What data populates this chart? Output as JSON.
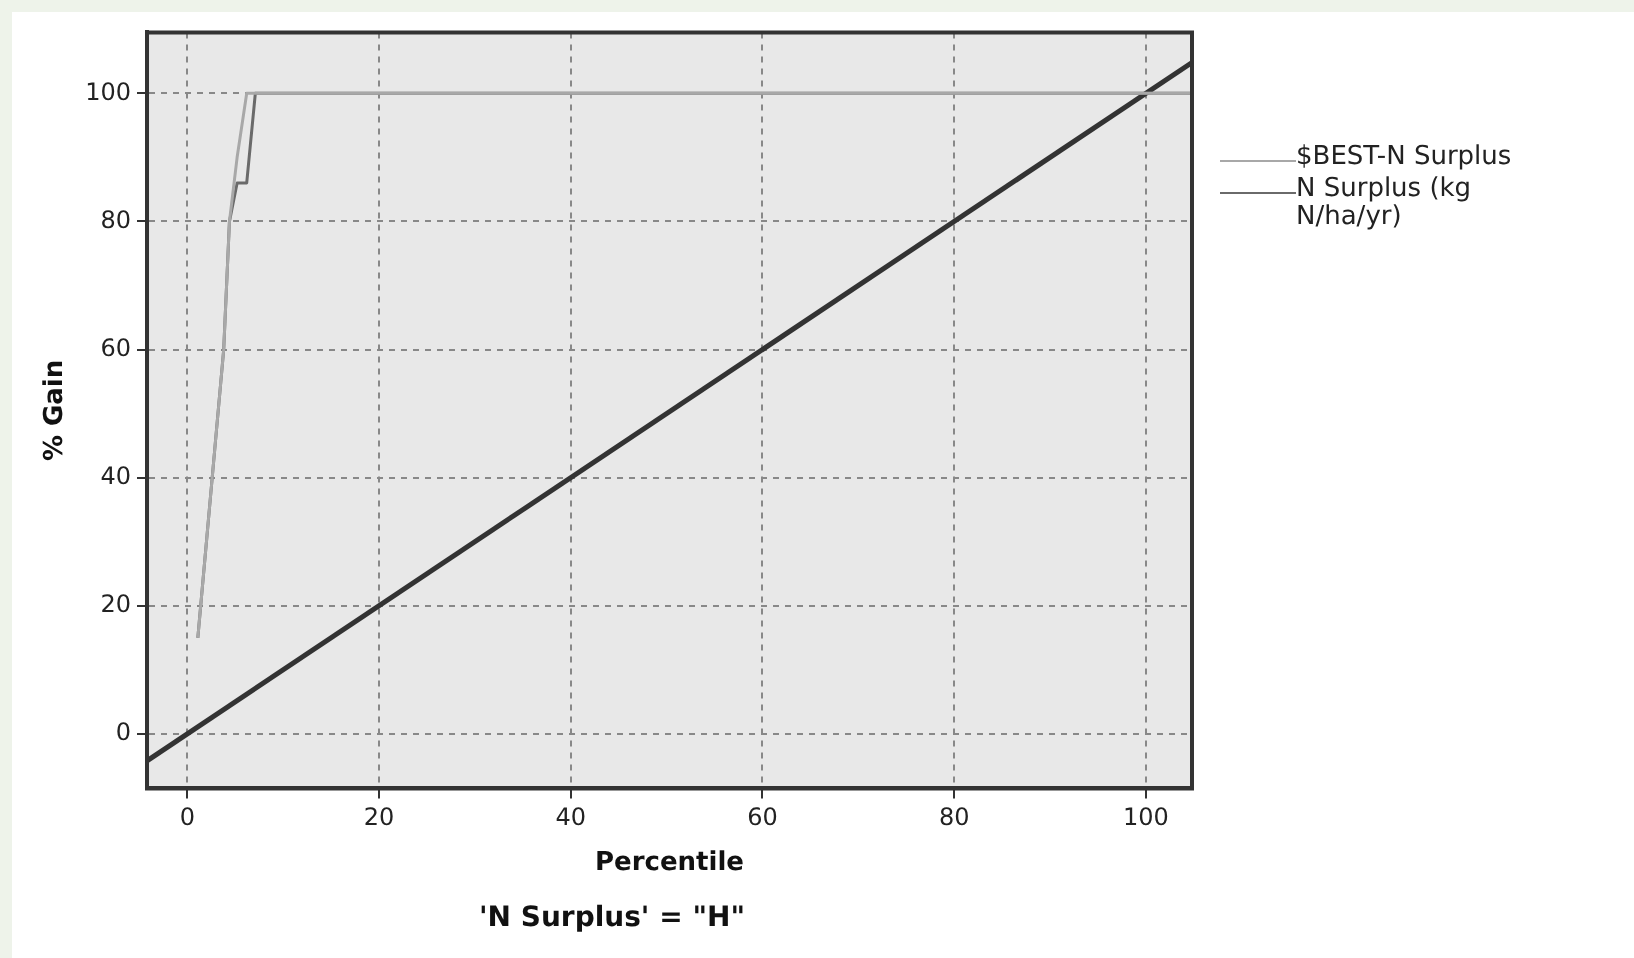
{
  "chart_data": {
    "type": "line",
    "title": "'N Surplus' = \"H\"",
    "xlabel": "Percentile",
    "ylabel": "% Gain",
    "xlim": [
      -4.2,
      104.8
    ],
    "ylim": [
      -8.5,
      109.5
    ],
    "xticks": [
      0,
      20,
      40,
      60,
      80,
      100
    ],
    "yticks": [
      0,
      20,
      40,
      60,
      80,
      100
    ],
    "grid": true,
    "legend": "right",
    "marker": "none",
    "line_style": "solid",
    "series": [
      {
        "name": "$BEST-N Surplus",
        "color": "#a8a8a8",
        "x": [
          1.1,
          3.8,
          4.4,
          5.2,
          6.2,
          104.8
        ],
        "values": [
          15,
          60,
          80,
          90,
          100,
          100
        ]
      },
      {
        "name": "N Surplus (kg N/ha/yr)",
        "color": "#6a6a6a",
        "x": [
          1.1,
          3.8,
          4.4,
          5.2,
          6.2,
          7.1,
          104.8
        ],
        "values": [
          15,
          60,
          80,
          86,
          86,
          100,
          100
        ]
      },
      {
        "color": "#333333",
        "x": [
          -4.2,
          104.8
        ],
        "values": [
          -4.2,
          104.8
        ]
      }
    ]
  }
}
